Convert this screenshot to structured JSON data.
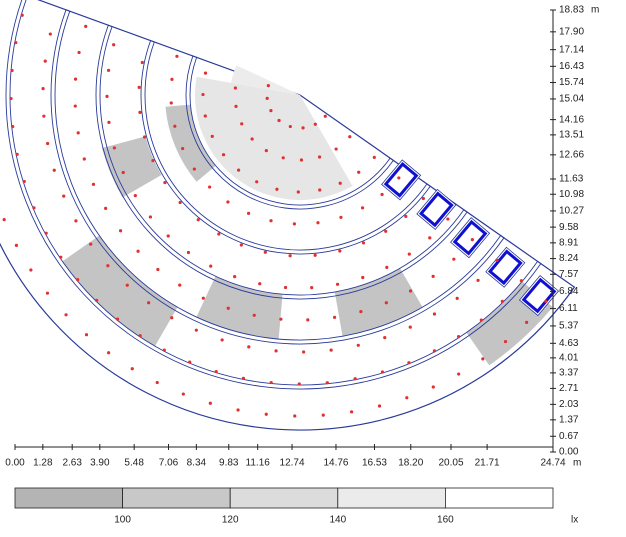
{
  "chart_data": {
    "type": "plan",
    "xlim": [
      0,
      24.74
    ],
    "ylim": [
      0,
      18.83
    ],
    "x_unit": "m",
    "y_unit": "m",
    "xticks": [
      {
        "value": 0,
        "label": "0.00"
      },
      1.28,
      2.63,
      {
        "value": 3.9,
        "label": "3.90"
      },
      5.48,
      7.06,
      8.34,
      9.83,
      11.16,
      12.74,
      14.76,
      16.53,
      {
        "value": 18.2,
        "label": "18.20"
      },
      20.05,
      21.71,
      24.74
    ],
    "yticks": [
      {
        "value": 0,
        "label": "0.00"
      },
      0.67,
      1.37,
      2.03,
      2.71,
      3.37,
      4.01,
      4.63,
      5.37,
      6.11,
      6.84,
      7.57,
      8.24,
      8.91,
      9.58,
      10.27,
      10.98,
      11.63,
      12.66,
      13.51,
      14.16,
      15.04,
      15.74,
      16.43,
      17.14,
      {
        "value": 17.9,
        "label": "17.90"
      },
      18.83
    ],
    "legend": {
      "levels": [
        100,
        120,
        140,
        160
      ],
      "unit": "lx",
      "colors": [
        "#b4b4b4",
        "#c8c8c8",
        "#dcdcdc",
        "#ebebeb",
        "#ffffff"
      ]
    }
  }
}
